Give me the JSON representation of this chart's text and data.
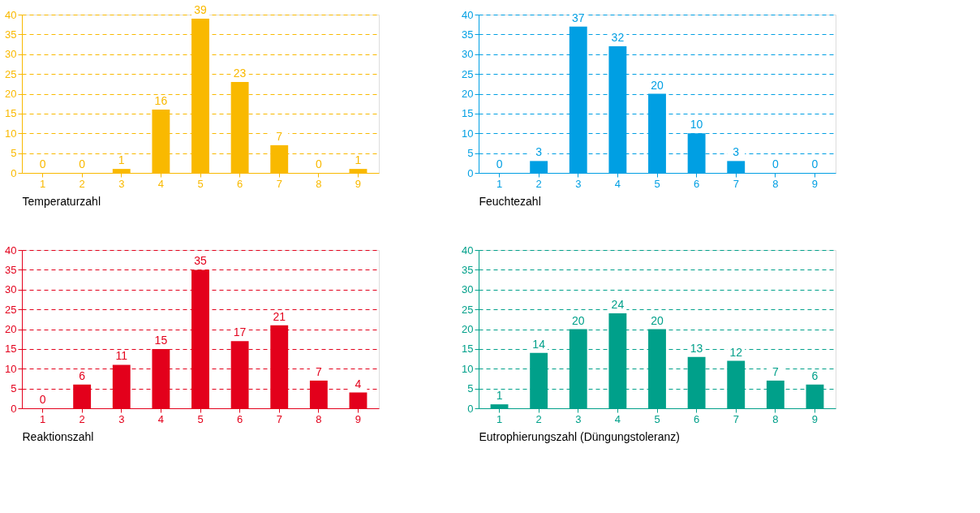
{
  "chart_data": [
    {
      "type": "bar",
      "xlabel": "Temperaturzahl",
      "categories": [
        "1",
        "2",
        "3",
        "4",
        "5",
        "6",
        "7",
        "8",
        "9"
      ],
      "values": [
        0,
        0,
        1,
        16,
        39,
        23,
        7,
        0,
        1
      ],
      "color": "#f9b900",
      "ylim": [
        0,
        40
      ],
      "yticks": [
        0,
        5,
        10,
        15,
        20,
        25,
        30,
        35,
        40
      ],
      "grid": "y",
      "data_labels": true
    },
    {
      "type": "bar",
      "xlabel": "Feuchtezahl",
      "categories": [
        "1",
        "2",
        "3",
        "4",
        "5",
        "6",
        "7",
        "8",
        "9"
      ],
      "values": [
        0,
        3,
        37,
        32,
        20,
        10,
        3,
        0,
        0
      ],
      "color": "#009fe3",
      "ylim": [
        0,
        40
      ],
      "yticks": [
        0,
        5,
        10,
        15,
        20,
        25,
        30,
        35,
        40
      ],
      "grid": "y",
      "data_labels": true
    },
    {
      "type": "bar",
      "xlabel": "Reaktionszahl",
      "categories": [
        "1",
        "2",
        "3",
        "4",
        "5",
        "6",
        "7",
        "8",
        "9"
      ],
      "values": [
        0,
        6,
        11,
        15,
        35,
        17,
        21,
        7,
        4
      ],
      "color": "#e3001b",
      "ylim": [
        0,
        40
      ],
      "yticks": [
        0,
        5,
        10,
        15,
        20,
        25,
        30,
        35,
        40
      ],
      "grid": "y",
      "data_labels": true
    },
    {
      "type": "bar",
      "xlabel": "Eutrophierungszahl (Düngungstoleranz)",
      "categories": [
        "1",
        "2",
        "3",
        "4",
        "5",
        "6",
        "7",
        "8",
        "9"
      ],
      "values": [
        1,
        14,
        20,
        24,
        20,
        13,
        12,
        7,
        6
      ],
      "color": "#00a08a",
      "ylim": [
        0,
        40
      ],
      "yticks": [
        0,
        5,
        10,
        15,
        20,
        25,
        30,
        35,
        40
      ],
      "grid": "y",
      "data_labels": true
    }
  ]
}
